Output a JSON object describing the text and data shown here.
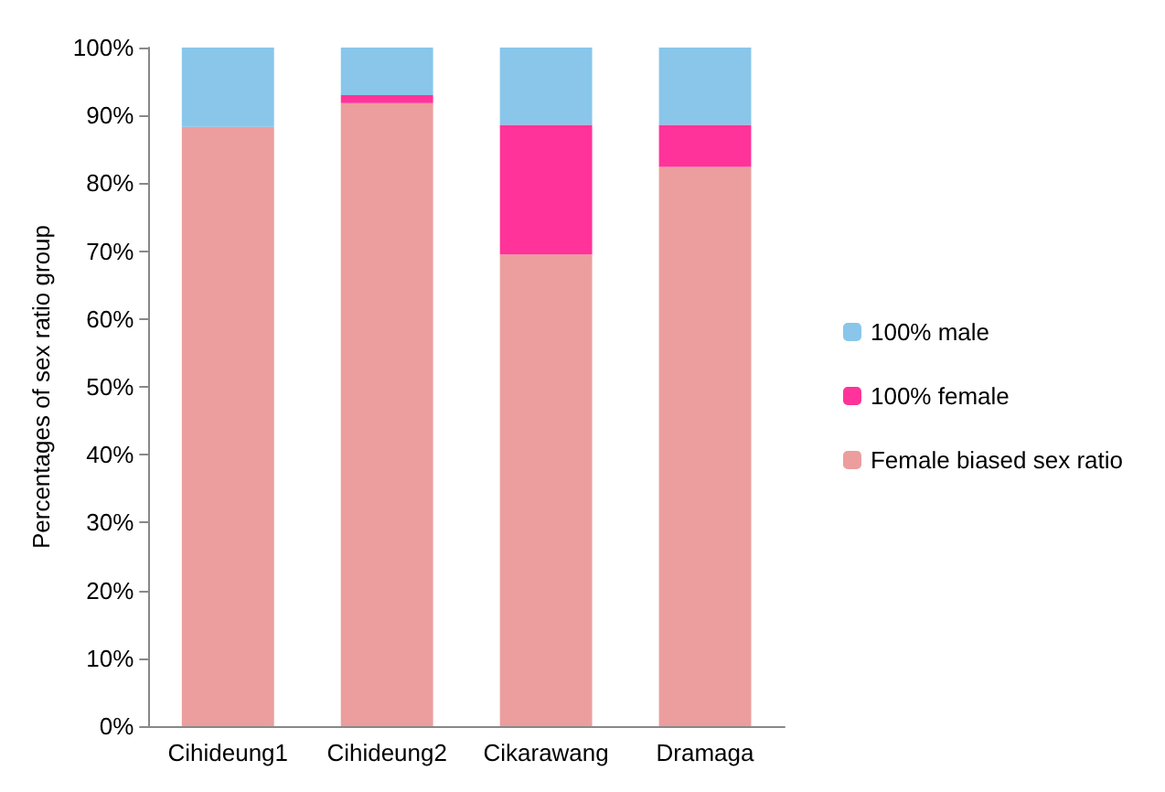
{
  "chart_data": {
    "type": "bar",
    "stacked": true,
    "ylabel": "Percentages of sex ratio group",
    "categories": [
      "Cihideung1",
      "Cihideung2",
      "Cikarawang",
      "Dramaga"
    ],
    "series": [
      {
        "name": "Female biased sex ratio",
        "color": "#eb9e9d",
        "values": [
          88.3,
          91.8,
          69.5,
          82.4
        ]
      },
      {
        "name": "100% female",
        "color": "#ff3399",
        "values": [
          0,
          1.2,
          19.1,
          6.2
        ]
      },
      {
        "name": "100% male",
        "color": "#89c6ea",
        "values": [
          11.7,
          7.0,
          11.4,
          11.4
        ]
      }
    ],
    "ylim": [
      0,
      100
    ],
    "yticks": [
      {
        "value": 0,
        "label": "0%"
      },
      {
        "value": 10,
        "label": "10%"
      },
      {
        "value": 20,
        "label": "20%"
      },
      {
        "value": 30,
        "label": "30%"
      },
      {
        "value": 40,
        "label": "40%"
      },
      {
        "value": 50,
        "label": "50%"
      },
      {
        "value": 60,
        "label": "60%"
      },
      {
        "value": 70,
        "label": "70%"
      },
      {
        "value": 80,
        "label": "80%"
      },
      {
        "value": 90,
        "label": "90%"
      },
      {
        "value": 100,
        "label": "100%"
      }
    ],
    "grid": false,
    "legend": "right"
  }
}
